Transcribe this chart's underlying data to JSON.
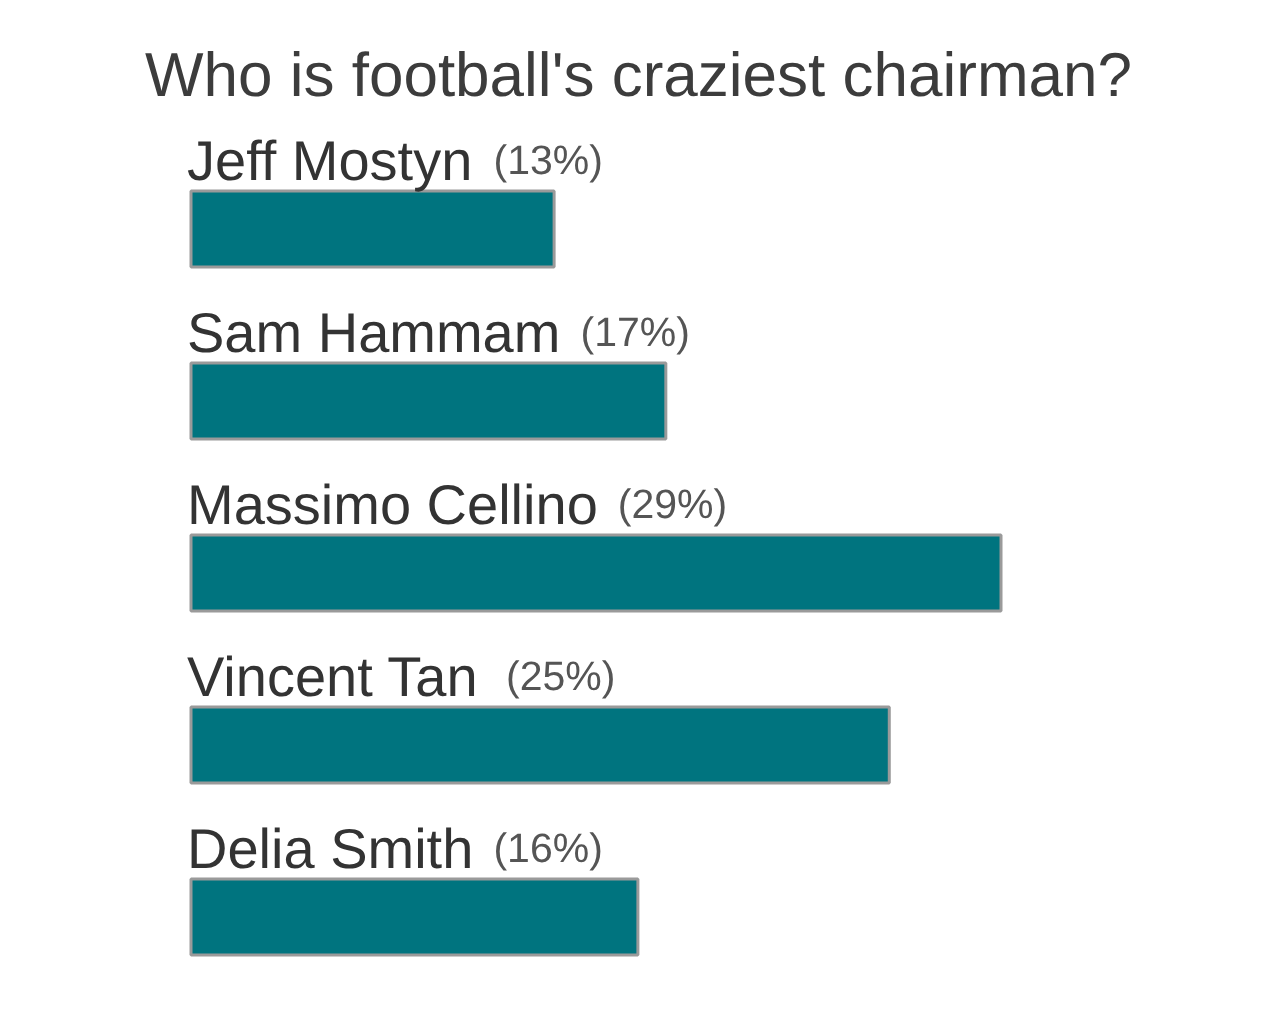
{
  "chart_data": {
    "type": "bar",
    "orientation": "horizontal",
    "title": "Who is football's craziest chairman?",
    "categories": [
      "Jeff Mostyn",
      "Sam Hammam",
      "Massimo Cellino",
      "Vincent Tan",
      "Delia Smith"
    ],
    "values": [
      13,
      17,
      29,
      25,
      16
    ],
    "value_labels": [
      "(13%)",
      "(17%)",
      "(29%)",
      "(25%)",
      "(16%)"
    ],
    "color": "#00747f"
  }
}
